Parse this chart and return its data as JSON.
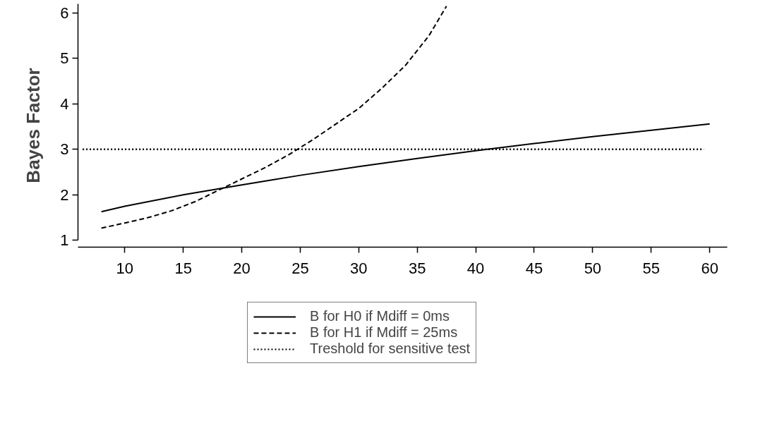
{
  "chart_data": {
    "type": "line",
    "ylabel": "Bayes Factor",
    "xlim": [
      6,
      61.5
    ],
    "ylim": [
      0.85,
      6.2
    ],
    "xticks": [
      10,
      15,
      20,
      25,
      30,
      35,
      40,
      45,
      50,
      55,
      60
    ],
    "yticks": [
      1,
      2,
      3,
      4,
      5,
      6
    ],
    "grid": false,
    "legend": "bottom",
    "series": [
      {
        "name": "B for H0 if Mdiff = 0ms",
        "color": "#000000",
        "line_style": "solid",
        "x": [
          8,
          10,
          15,
          20,
          25,
          30,
          35,
          40,
          45,
          50,
          55,
          60
        ],
        "values": [
          1.63,
          1.75,
          2.0,
          2.22,
          2.43,
          2.62,
          2.8,
          2.97,
          3.13,
          3.28,
          3.42,
          3.56
        ]
      },
      {
        "name": "B for H1 if Mdiff = 25ms",
        "color": "#000000",
        "line_style": "dashed",
        "x": [
          8,
          10,
          12,
          14,
          16,
          18,
          20,
          22,
          24,
          26,
          28,
          30,
          32,
          34,
          36,
          37.5
        ],
        "values": [
          1.27,
          1.38,
          1.5,
          1.65,
          1.85,
          2.1,
          2.35,
          2.6,
          2.88,
          3.2,
          3.55,
          3.9,
          4.35,
          4.85,
          5.5,
          6.15
        ]
      }
    ],
    "ref_lines": [
      {
        "axis": "y",
        "value": 3,
        "label": "Treshold for sensitive test",
        "color": "#000000",
        "line_style": "dotted"
      }
    ]
  }
}
